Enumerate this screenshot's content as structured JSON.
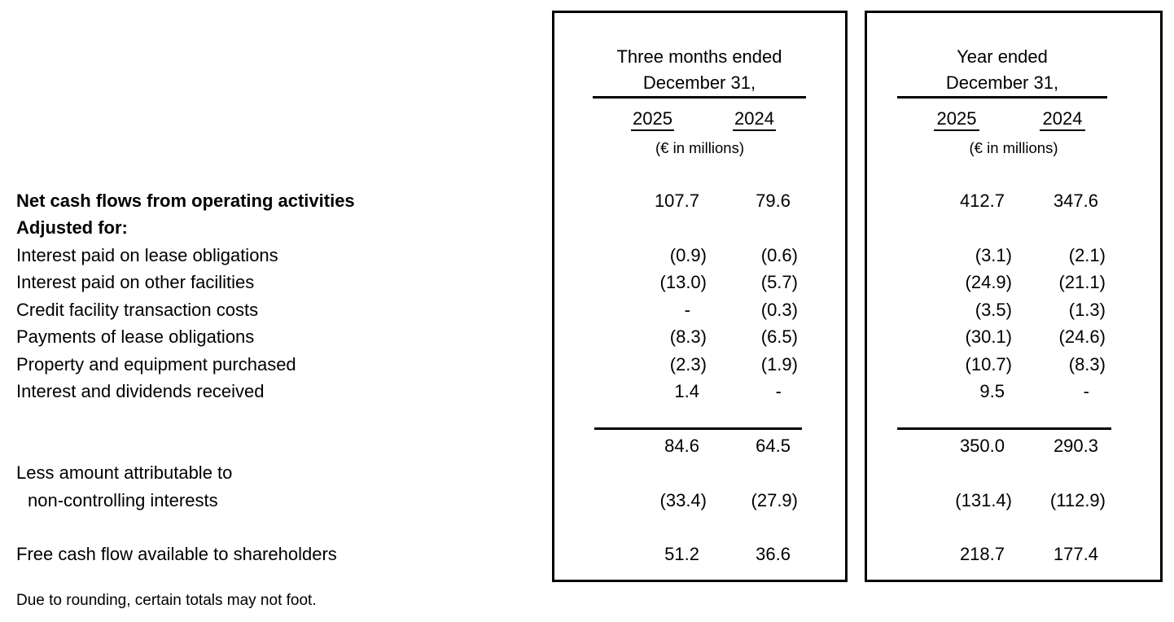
{
  "table": {
    "groups": [
      {
        "title_line1": "Three months ended",
        "title_line2": "December 31,",
        "years": [
          "2025",
          "2024"
        ],
        "units": "(€ in millions)"
      },
      {
        "title_line1": "Year ended",
        "title_line2": "December 31,",
        "years": [
          "2025",
          "2024"
        ],
        "units": "(€ in millions)"
      }
    ],
    "rows": [
      {
        "label": "Net cash flows from operating activities",
        "three_months": [
          "107.7",
          "79.6"
        ],
        "year": [
          "412.7",
          "347.6"
        ]
      },
      {
        "label": "Adjusted for:",
        "three_months": [
          "",
          ""
        ],
        "year": [
          "",
          ""
        ]
      },
      {
        "label": "Interest paid on lease obligations",
        "three_months": [
          "(0.9)",
          "(0.6)"
        ],
        "year": [
          "(3.1)",
          "(2.1)"
        ]
      },
      {
        "label": "Interest paid on other facilities",
        "three_months": [
          "(13.0)",
          "(5.7)"
        ],
        "year": [
          "(24.9)",
          "(21.1)"
        ]
      },
      {
        "label": "Credit facility transaction costs",
        "three_months": [
          "-",
          "(0.3)"
        ],
        "year": [
          "(3.5)",
          "(1.3)"
        ]
      },
      {
        "label": "Payments of lease obligations",
        "three_months": [
          "(8.3)",
          "(6.5)"
        ],
        "year": [
          "(30.1)",
          "(24.6)"
        ]
      },
      {
        "label": "Property and equipment purchased",
        "three_months": [
          "(2.3)",
          "(1.9)"
        ],
        "year": [
          "(10.7)",
          "(8.3)"
        ]
      },
      {
        "label": "Interest and dividends received",
        "three_months": [
          "1.4",
          "-"
        ],
        "year": [
          "9.5",
          "-"
        ]
      },
      {
        "label": "",
        "three_months": [
          "",
          ""
        ],
        "year": [
          "",
          ""
        ]
      },
      {
        "label": "",
        "three_months": [
          "84.6",
          "64.5"
        ],
        "year": [
          "350.0",
          "290.3"
        ]
      },
      {
        "label": "Less amount attributable to",
        "three_months": [
          "",
          ""
        ],
        "year": [
          "",
          ""
        ]
      },
      {
        "label": "non-controlling interests",
        "three_months": [
          "(33.4)",
          "(27.9)"
        ],
        "year": [
          "(131.4)",
          "(112.9)"
        ]
      },
      {
        "label": "",
        "three_months": [
          "",
          ""
        ],
        "year": [
          "",
          ""
        ]
      },
      {
        "label": "Free cash flow available to shareholders",
        "three_months": [
          "51.2",
          "36.6"
        ],
        "year": [
          "218.7",
          "177.4"
        ]
      }
    ]
  },
  "footer": {
    "note": "Due to rounding, certain totals may not foot."
  }
}
